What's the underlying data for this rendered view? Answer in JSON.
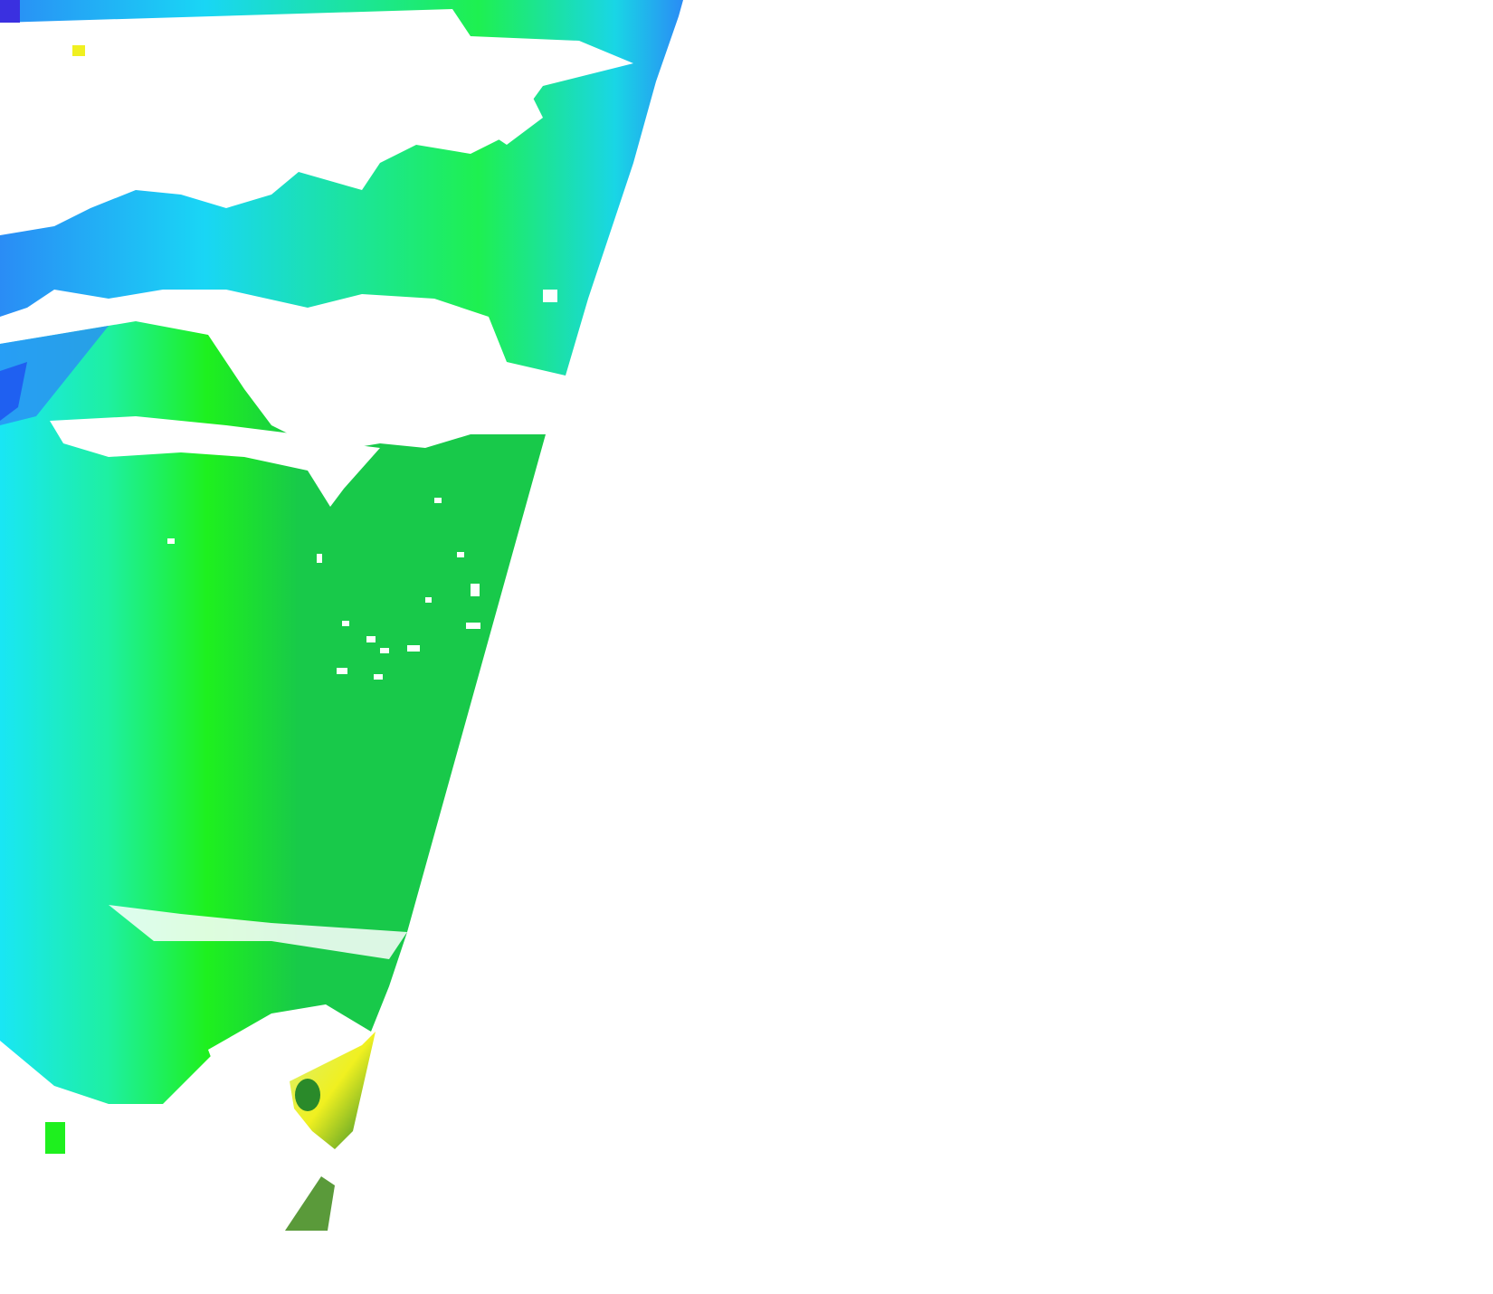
{
  "image": {
    "kind": "satellite-swath-raster",
    "background": "#ffffff",
    "palette": {
      "deep_blue": "#1e50f0",
      "blue": "#2a8cf5",
      "cyan": "#19e6f5",
      "bright_green": "#1ef01e",
      "green": "#18c94a",
      "dark_green": "#2a8a2a",
      "yellow_green": "#d8f07a",
      "yellow": "#f0f020",
      "no_data": "#ffffff"
    }
  }
}
